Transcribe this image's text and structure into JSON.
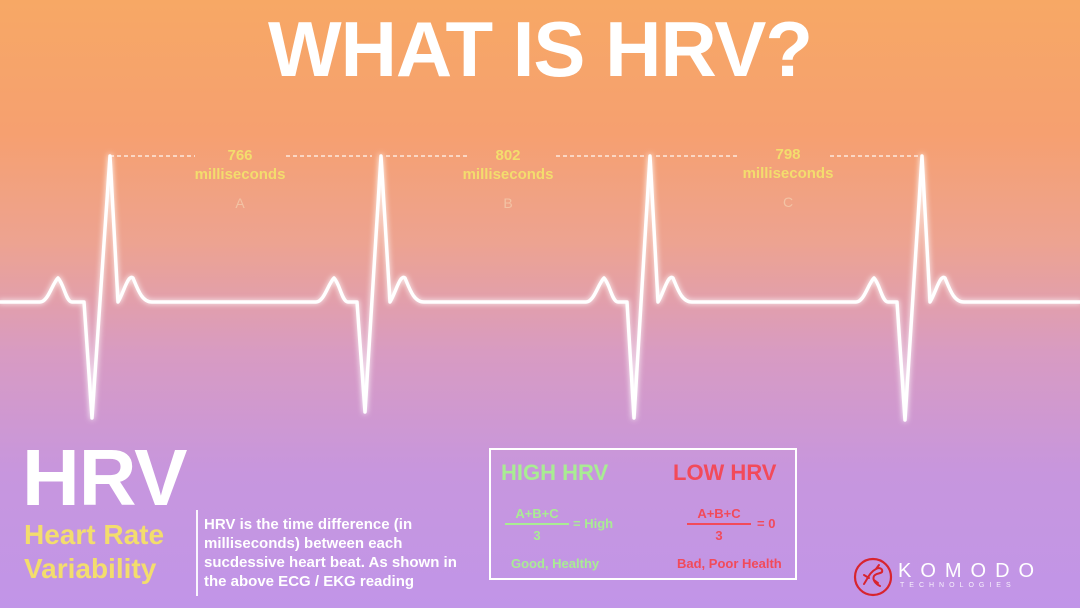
{
  "title": "WHAT IS HRV?",
  "intervals": [
    {
      "value": "766",
      "unit": "milliseconds",
      "letter": "A"
    },
    {
      "value": "802",
      "unit": "milliseconds",
      "letter": "B"
    },
    {
      "value": "798",
      "unit": "milliseconds",
      "letter": "C"
    }
  ],
  "hrv": {
    "abbr": "HRV",
    "full_line1": "Heart Rate",
    "full_line2": "Variability",
    "description": "HRV is the time difference (in milliseconds) between each sucdessive heart beat. As shown in the above ECG / EKG reading"
  },
  "comparison": {
    "high": {
      "title": "HIGH HRV",
      "numerator": "A+B+C",
      "denominator": "3",
      "result": "= High",
      "verdict": "Good, Healthy",
      "color": "#a9ec93"
    },
    "low": {
      "title": "LOW HRV",
      "numerator": "A+B+C",
      "denominator": "3",
      "result": "= 0",
      "verdict": "Bad, Poor Health",
      "color": "#f24a5a"
    }
  },
  "logo": {
    "name": "KOMODO",
    "tagline": "TECHNOLOGIES",
    "icon": "komodo-lizard-icon"
  },
  "colors": {
    "accent": "#f3dd6d",
    "ecg_line": "#ffffff"
  }
}
